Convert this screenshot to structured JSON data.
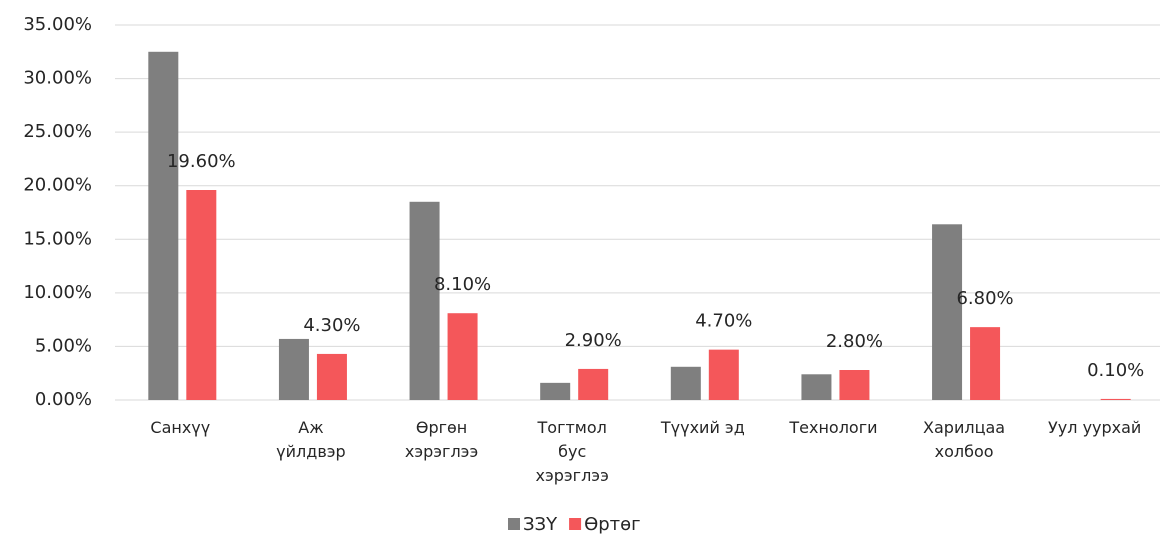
{
  "chart_data": {
    "type": "bar",
    "categories": [
      "Санхүү",
      "Аж\nүйлдвэр",
      "Өргөн\nхэрэглээ",
      "Тогтмол\nбус\nхэрэглээ",
      "Түүхий эд",
      "Технологи",
      "Харилцаа\nхолбоо",
      "Уул уурхай"
    ],
    "series": [
      {
        "name": "ЗЗҮ",
        "color": "#7f7f7f",
        "values": [
          32.5,
          5.7,
          18.5,
          1.6,
          3.1,
          2.4,
          16.4,
          0
        ]
      },
      {
        "name": "Өртөг",
        "color": "#f4575a",
        "values": [
          19.6,
          4.3,
          8.1,
          2.9,
          4.7,
          2.8,
          6.8,
          0.1
        ],
        "value_labels": [
          "19.60%",
          "4.30%",
          "8.10%",
          "2.90%",
          "4.70%",
          "2.80%",
          "6.80%",
          "0.10%"
        ]
      }
    ],
    "ylim": [
      0,
      35
    ],
    "yticks": [
      {
        "value": 0,
        "label": "0.00%"
      },
      {
        "value": 5,
        "label": "5.00%"
      },
      {
        "value": 10,
        "label": "10.00%"
      },
      {
        "value": 15,
        "label": "15.00%"
      },
      {
        "value": 20,
        "label": "20.00%"
      },
      {
        "value": 25,
        "label": "25.00%"
      },
      {
        "value": 30,
        "label": "30.00%"
      },
      {
        "value": 35,
        "label": "35.00%"
      }
    ],
    "grid": true,
    "legend": "bottom"
  }
}
